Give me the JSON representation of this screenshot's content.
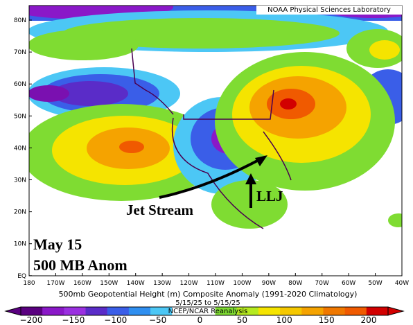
{
  "header": {
    "source": "NOAA Physical Sciences Laboratory"
  },
  "map": {
    "lat_labels": [
      "80N",
      "70N",
      "60N",
      "50N",
      "40N",
      "30N",
      "20N",
      "10N",
      "EQ"
    ],
    "lon_labels": [
      "180",
      "170W",
      "160W",
      "150W",
      "140W",
      "130W",
      "120W",
      "110W",
      "100W",
      "90W",
      "80W",
      "70W",
      "60W",
      "50W",
      "40W"
    ],
    "annotations": {
      "jet": "Jet Stream",
      "llj": "LLJ",
      "date": "May 15",
      "level": "500 MB Anom"
    }
  },
  "caption": {
    "title": "500mb Geopotential Height (m) Composite Anomaly (1991-2020 Climatology)",
    "dates": "5/15/25  to 5/15/25",
    "source": "NCEP/NCAR Reanalysis"
  },
  "colorbar": {
    "labels": [
      "−200",
      "−150",
      "−100",
      "−50",
      "0",
      "50",
      "100",
      "150",
      "200"
    ]
  }
}
